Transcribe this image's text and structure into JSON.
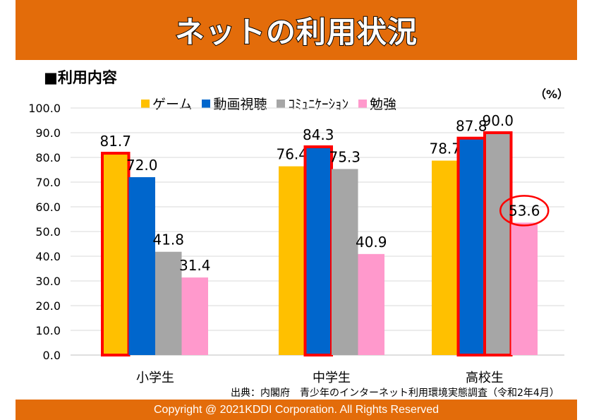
{
  "header": {
    "title": "ネットの利用状況"
  },
  "subtitle": "■利用内容",
  "source": "出典：内閣府　青少年のインターネット利用環境実態調査（令和2年4月）",
  "footer": "Copyright @ 2021KDDI Corporation. All Rights Reserved",
  "chart_data": {
    "type": "bar",
    "unit_label": "（%）",
    "categories": [
      "小学生",
      "中学生",
      "高校生"
    ],
    "series": [
      {
        "name": "ゲーム",
        "color": "#FFC000",
        "values": [
          81.7,
          76.4,
          78.7
        ]
      },
      {
        "name": "動画視聴",
        "color": "#0066CC",
        "values": [
          72.0,
          84.3,
          87.8
        ]
      },
      {
        "name": "ｺﾐｭﾆｹｰｼｮﾝ",
        "color": "#A6A6A6",
        "values": [
          41.8,
          75.3,
          90.0
        ]
      },
      {
        "name": "勉強",
        "color": "#FF99CC",
        "values": [
          31.4,
          40.9,
          53.6
        ]
      }
    ],
    "highlighted_bars": [
      [
        0,
        0
      ],
      [
        1,
        1
      ],
      [
        2,
        1
      ],
      [
        2,
        2
      ]
    ],
    "circled_labels": [
      [
        2,
        3
      ]
    ],
    "ylim": [
      0,
      100
    ],
    "yticks": [
      "0.0",
      "10.0",
      "20.0",
      "30.0",
      "40.0",
      "50.0",
      "60.0",
      "70.0",
      "80.0",
      "90.0",
      "100.0"
    ],
    "grid": true,
    "legend_position": "top"
  }
}
